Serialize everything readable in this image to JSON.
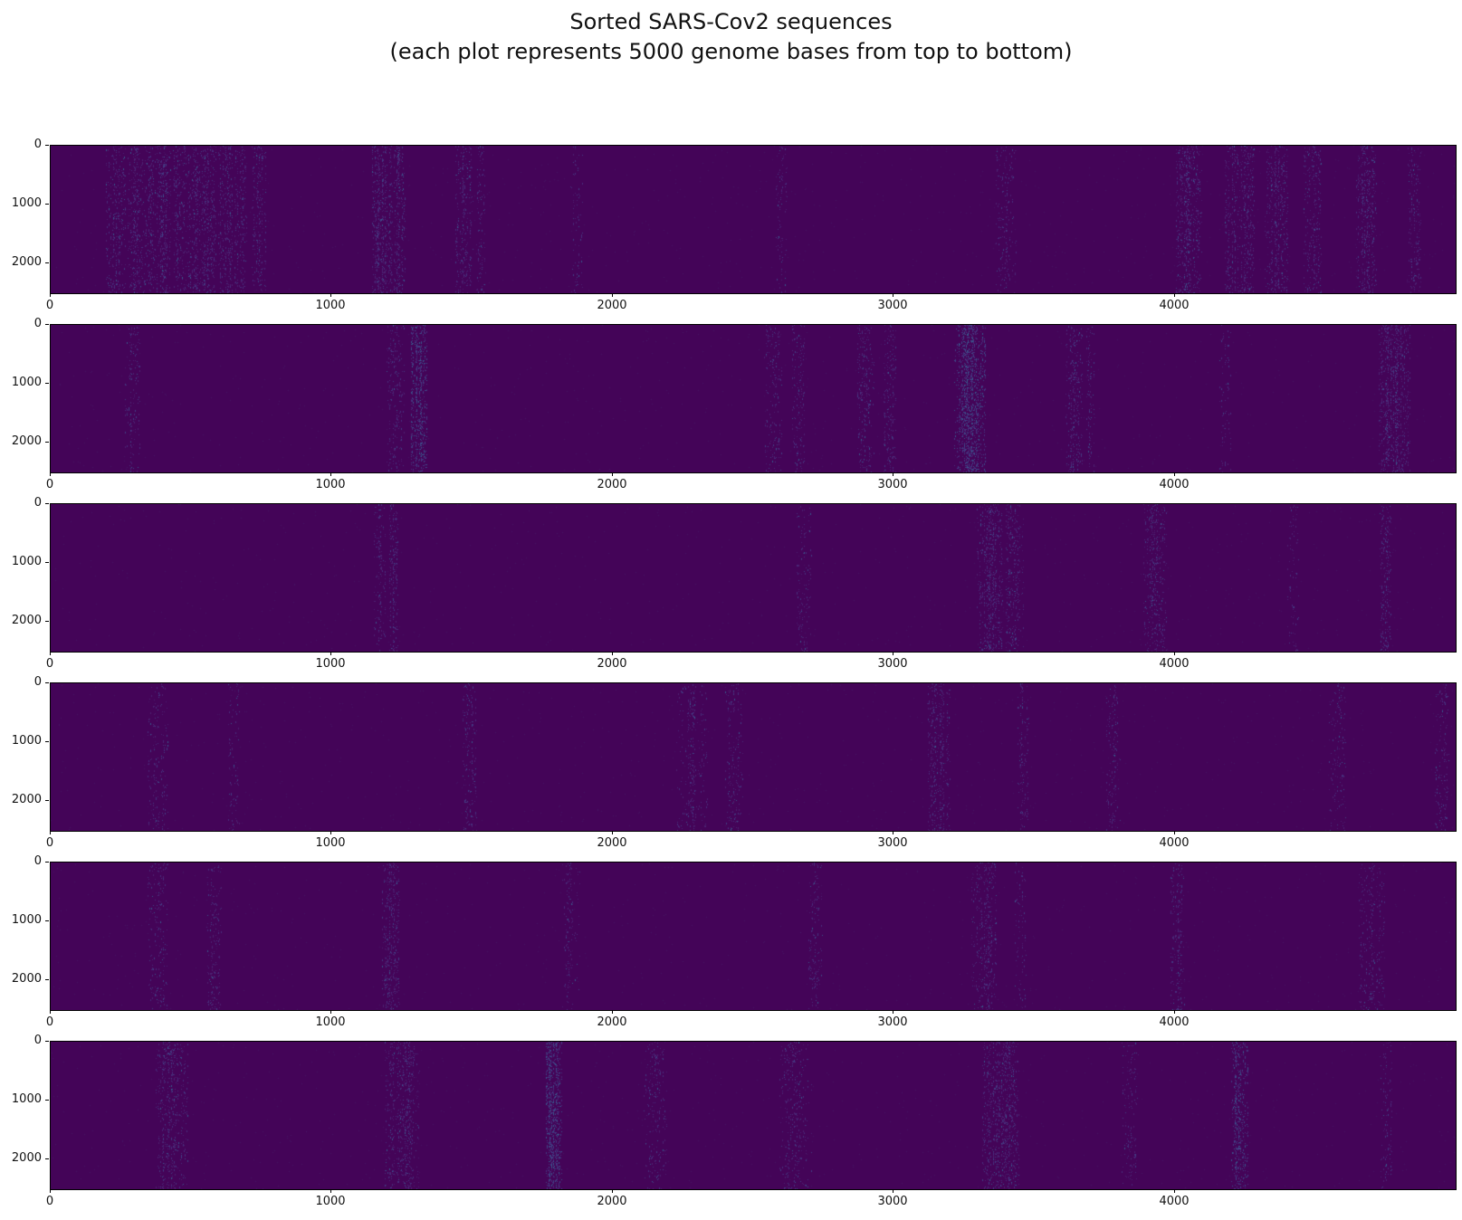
{
  "figure": {
    "title_line1": "Sorted SARS-Cov2 sequences",
    "title_line2": "(each plot represents 5000 genome bases from top to bottom)",
    "background": "#ffffff"
  },
  "chart_data": {
    "type": "heatmap",
    "title": "Sorted SARS-Cov2 sequences (each plot represents 5000 genome bases from top to bottom)",
    "colormap": "viridis",
    "num_subplots": 6,
    "x_range": [
      0,
      5000
    ],
    "y_range": [
      0,
      2500
    ],
    "x_ticks": [
      0,
      1000,
      2000,
      3000,
      4000
    ],
    "y_ticks": [
      0,
      1000,
      2000
    ],
    "x_tick_labels": [
      "0",
      "1000",
      "2000",
      "3000",
      "4000"
    ],
    "y_tick_labels": [
      "0",
      "1000",
      "2000"
    ],
    "grid": false,
    "legend": "none",
    "base_color": "#440458",
    "speckle_palette": [
      "#4c2272",
      "#472f7d",
      "#423f85",
      "#38598c"
    ],
    "subplots": [
      {
        "row": 1,
        "streaks": [
          {
            "x": 230,
            "w": 35,
            "i": 0.28
          },
          {
            "x": 300,
            "w": 25,
            "i": 0.32
          },
          {
            "x": 350,
            "w": 20,
            "i": 0.25
          },
          {
            "x": 400,
            "w": 25,
            "i": 0.35
          },
          {
            "x": 460,
            "w": 25,
            "i": 0.3
          },
          {
            "x": 510,
            "w": 20,
            "i": 0.35
          },
          {
            "x": 560,
            "w": 25,
            "i": 0.4
          },
          {
            "x": 620,
            "w": 25,
            "i": 0.38
          },
          {
            "x": 675,
            "w": 20,
            "i": 0.3
          },
          {
            "x": 740,
            "w": 25,
            "i": 0.22
          },
          {
            "x": 1180,
            "w": 35,
            "i": 0.4
          },
          {
            "x": 1240,
            "w": 20,
            "i": 0.42
          },
          {
            "x": 1470,
            "w": 30,
            "i": 0.3
          },
          {
            "x": 1530,
            "w": 15,
            "i": 0.2
          },
          {
            "x": 1870,
            "w": 20,
            "i": 0.14
          },
          {
            "x": 2600,
            "w": 20,
            "i": 0.12
          },
          {
            "x": 3400,
            "w": 35,
            "i": 0.16
          },
          {
            "x": 4050,
            "w": 45,
            "i": 0.3
          },
          {
            "x": 4230,
            "w": 50,
            "i": 0.34
          },
          {
            "x": 4360,
            "w": 40,
            "i": 0.3
          },
          {
            "x": 4490,
            "w": 30,
            "i": 0.26
          },
          {
            "x": 4680,
            "w": 35,
            "i": 0.3
          },
          {
            "x": 4850,
            "w": 25,
            "i": 0.2
          }
        ]
      },
      {
        "row": 2,
        "streaks": [
          {
            "x": 290,
            "w": 25,
            "i": 0.16
          },
          {
            "x": 1225,
            "w": 30,
            "i": 0.16
          },
          {
            "x": 1310,
            "w": 28,
            "i": 0.55
          },
          {
            "x": 2570,
            "w": 30,
            "i": 0.2
          },
          {
            "x": 2660,
            "w": 22,
            "i": 0.2
          },
          {
            "x": 2900,
            "w": 28,
            "i": 0.24
          },
          {
            "x": 2985,
            "w": 22,
            "i": 0.24
          },
          {
            "x": 3270,
            "w": 55,
            "i": 0.5
          },
          {
            "x": 3640,
            "w": 30,
            "i": 0.24
          },
          {
            "x": 3700,
            "w": 15,
            "i": 0.18
          },
          {
            "x": 4180,
            "w": 20,
            "i": 0.12
          },
          {
            "x": 4780,
            "w": 55,
            "i": 0.4
          }
        ]
      },
      {
        "row": 3,
        "streaks": [
          {
            "x": 1170,
            "w": 20,
            "i": 0.22
          },
          {
            "x": 1220,
            "w": 15,
            "i": 0.28
          },
          {
            "x": 2680,
            "w": 25,
            "i": 0.15
          },
          {
            "x": 3340,
            "w": 45,
            "i": 0.42
          },
          {
            "x": 3430,
            "w": 30,
            "i": 0.35
          },
          {
            "x": 3930,
            "w": 40,
            "i": 0.25
          },
          {
            "x": 4420,
            "w": 20,
            "i": 0.12
          },
          {
            "x": 4750,
            "w": 20,
            "i": 0.2
          }
        ]
      },
      {
        "row": 4,
        "streaks": [
          {
            "x": 380,
            "w": 35,
            "i": 0.16
          },
          {
            "x": 650,
            "w": 20,
            "i": 0.13
          },
          {
            "x": 1490,
            "w": 25,
            "i": 0.26
          },
          {
            "x": 2280,
            "w": 55,
            "i": 0.2
          },
          {
            "x": 2430,
            "w": 30,
            "i": 0.16
          },
          {
            "x": 3160,
            "w": 40,
            "i": 0.26
          },
          {
            "x": 3460,
            "w": 20,
            "i": 0.2
          },
          {
            "x": 3780,
            "w": 25,
            "i": 0.2
          },
          {
            "x": 4580,
            "w": 30,
            "i": 0.16
          },
          {
            "x": 4950,
            "w": 25,
            "i": 0.14
          }
        ]
      },
      {
        "row": 5,
        "streaks": [
          {
            "x": 380,
            "w": 35,
            "i": 0.2
          },
          {
            "x": 580,
            "w": 25,
            "i": 0.15
          },
          {
            "x": 1210,
            "w": 30,
            "i": 0.36
          },
          {
            "x": 1850,
            "w": 30,
            "i": 0.13
          },
          {
            "x": 2720,
            "w": 25,
            "i": 0.15
          },
          {
            "x": 3320,
            "w": 45,
            "i": 0.3
          },
          {
            "x": 3450,
            "w": 20,
            "i": 0.18
          },
          {
            "x": 4010,
            "w": 25,
            "i": 0.2
          },
          {
            "x": 4700,
            "w": 45,
            "i": 0.16
          }
        ]
      },
      {
        "row": 6,
        "streaks": [
          {
            "x": 430,
            "w": 55,
            "i": 0.3
          },
          {
            "x": 1250,
            "w": 60,
            "i": 0.3
          },
          {
            "x": 1790,
            "w": 28,
            "i": 0.65
          },
          {
            "x": 2150,
            "w": 40,
            "i": 0.15
          },
          {
            "x": 2650,
            "w": 55,
            "i": 0.16
          },
          {
            "x": 3380,
            "w": 65,
            "i": 0.4
          },
          {
            "x": 3840,
            "w": 30,
            "i": 0.16
          },
          {
            "x": 4230,
            "w": 28,
            "i": 0.55
          },
          {
            "x": 4750,
            "w": 20,
            "i": 0.15
          }
        ]
      }
    ]
  }
}
